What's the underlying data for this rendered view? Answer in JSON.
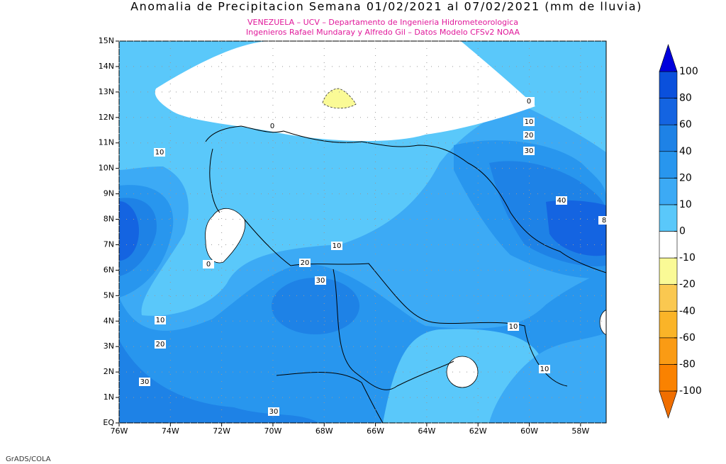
{
  "title": "Anomalia de Precipitacion Semana 01/02/2021 al 07/02/2021 (mm de lluvia)",
  "subtitle_lines": [
    "VENEZUELA – UCV – Departamento de Ingenieria Hidrometeorologica",
    "Ingenieros Rafael Mundaray y Alfredo Gil – Datos Modelo CFSv2 NOAA"
  ],
  "footer": "GrADS/COLA",
  "lon_ticks": [
    {
      "value": -76,
      "label": "76W"
    },
    {
      "value": -74,
      "label": "74W"
    },
    {
      "value": -72,
      "label": "72W"
    },
    {
      "value": -70,
      "label": "70W"
    },
    {
      "value": -68,
      "label": "68W"
    },
    {
      "value": -66,
      "label": "66W"
    },
    {
      "value": -64,
      "label": "64W"
    },
    {
      "value": -62,
      "label": "62W"
    },
    {
      "value": -60,
      "label": "60W"
    },
    {
      "value": -58,
      "label": "58W"
    }
  ],
  "lat_ticks": [
    {
      "value": 0,
      "label": "EQ"
    },
    {
      "value": 1,
      "label": "1N"
    },
    {
      "value": 2,
      "label": "2N"
    },
    {
      "value": 3,
      "label": "3N"
    },
    {
      "value": 4,
      "label": "4N"
    },
    {
      "value": 5,
      "label": "5N"
    },
    {
      "value": 6,
      "label": "6N"
    },
    {
      "value": 7,
      "label": "7N"
    },
    {
      "value": 8,
      "label": "8N"
    },
    {
      "value": 9,
      "label": "9N"
    },
    {
      "value": 10,
      "label": "10N"
    },
    {
      "value": 11,
      "label": "11N"
    },
    {
      "value": 12,
      "label": "12N"
    },
    {
      "value": 13,
      "label": "13N"
    },
    {
      "value": 14,
      "label": "14N"
    },
    {
      "value": 15,
      "label": "15N"
    }
  ],
  "lon_range": [
    -76,
    -57
  ],
  "lat_range": [
    0,
    15
  ],
  "contour_labels": [
    0,
    10,
    20,
    30,
    40,
    8,
    10,
    0,
    10,
    20,
    30,
    0,
    10,
    20,
    30,
    30,
    10,
    10
  ],
  "colorbar": {
    "levels": [
      {
        "value": -100,
        "label": "-100"
      },
      {
        "value": -80,
        "label": "-80"
      },
      {
        "value": -60,
        "label": "-60"
      },
      {
        "value": -40,
        "label": "-40"
      },
      {
        "value": -20,
        "label": "-20"
      },
      {
        "value": -10,
        "label": "-10"
      },
      0,
      10,
      20,
      40,
      60,
      80,
      100
    ],
    "colors": [
      "#f06e00",
      "#fa8200",
      "#fa9b14",
      "#fab428",
      "#fac850",
      "#fafa96",
      "#ffffff",
      "#5ac8fa",
      "#3caaf5",
      "#2896ee",
      "#1e82e6",
      "#1464e1",
      "#0a50dc",
      "#0000dc"
    ]
  }
}
